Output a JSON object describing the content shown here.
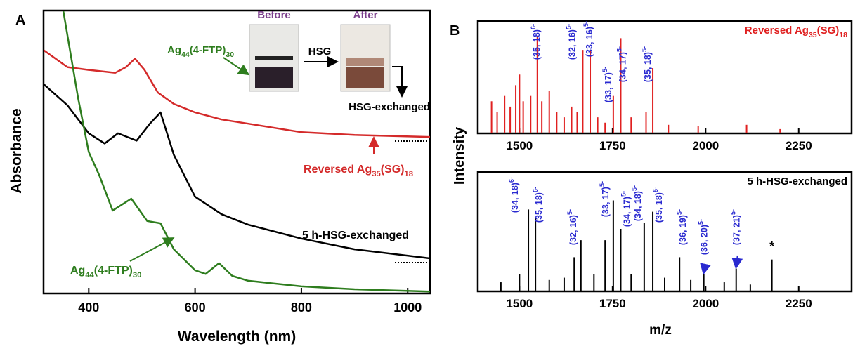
{
  "chart_data": [
    {
      "type": "line",
      "panel": "A",
      "xlabel": "Wavelength (nm)",
      "ylabel": "Absorbance",
      "xlim": [
        315,
        1042
      ],
      "ylim": [
        0,
        1
      ],
      "xticks": [
        400,
        600,
        800,
        1000
      ],
      "series": [
        {
          "name": [
            "Reversed Ag",
            "35",
            "(SG)",
            "18"
          ],
          "color": "#d42a2a",
          "x": [
            315,
            360,
            400,
            450,
            470,
            487,
            505,
            530,
            560,
            600,
            650,
            700,
            800,
            900,
            1042
          ],
          "values": [
            0.86,
            0.8,
            0.79,
            0.78,
            0.8,
            0.83,
            0.79,
            0.71,
            0.67,
            0.64,
            0.615,
            0.6,
            0.57,
            0.56,
            0.553
          ]
        },
        {
          "name": [
            "5 h-HSG-exchanged"
          ],
          "color": "#000000",
          "x": [
            315,
            360,
            400,
            430,
            455,
            490,
            515,
            535,
            560,
            600,
            650,
            700,
            800,
            900,
            1042
          ],
          "values": [
            0.74,
            0.665,
            0.566,
            0.53,
            0.566,
            0.54,
            0.6,
            0.64,
            0.49,
            0.342,
            0.28,
            0.243,
            0.194,
            0.156,
            0.124
          ]
        },
        {
          "name": [
            "Ag",
            "44",
            "(4-FTP)",
            "30"
          ],
          "color": "#2e7d1e",
          "x": [
            352,
            380,
            400,
            420,
            445,
            480,
            510,
            535,
            560,
            600,
            620,
            645,
            670,
            700,
            800,
            900,
            1042
          ],
          "values": [
            1.0,
            0.69,
            0.5,
            0.417,
            0.293,
            0.335,
            0.256,
            0.248,
            0.156,
            0.082,
            0.069,
            0.107,
            0.062,
            0.045,
            0.025,
            0.015,
            0.007
          ]
        }
      ],
      "inset": {
        "before": "Before",
        "after": "After",
        "reagent": "HSG",
        "product": "HSG-exchanged",
        "compound": [
          "Ag",
          "44",
          "(4-FTP)",
          "30"
        ]
      }
    },
    {
      "type": "stem",
      "panel": "B",
      "ylabel": "Intensity",
      "title": [
        "Reversed Ag",
        "35",
        "(SG)",
        "18"
      ],
      "color": "#e02020",
      "xlim": [
        1388,
        2392
      ],
      "ylim": [
        0,
        1.05
      ],
      "xticks": [
        1500,
        1750,
        2000,
        2250
      ],
      "x": [
        1425,
        1440,
        1460,
        1475,
        1490,
        1500,
        1510,
        1530,
        1548,
        1560,
        1580,
        1600,
        1620,
        1640,
        1655,
        1670,
        1690,
        1710,
        1730,
        1752,
        1772,
        1800,
        1840,
        1858,
        1900,
        1980,
        2110,
        2200
      ],
      "values": [
        0.3,
        0.2,
        0.35,
        0.25,
        0.45,
        0.55,
        0.3,
        0.35,
        0.9,
        0.3,
        0.4,
        0.2,
        0.15,
        0.25,
        0.2,
        0.78,
        0.78,
        0.15,
        0.1,
        0.35,
        0.89,
        0.15,
        0.2,
        0.61,
        0.08,
        0.07,
        0.08,
        0.04
      ],
      "peak_labels": [
        {
          "text": "(35, 18)",
          "sup": "6-",
          "x": 1548
        },
        {
          "text": "(32, 16)",
          "sup": "5-",
          "x": 1670
        },
        {
          "text": "(33, 16)",
          "sup": "5-",
          "x": 1690
        },
        {
          "text": "(33, 17)",
          "sup": "5-",
          "x": 1752
        },
        {
          "text": "(34, 17)",
          "sup": "5-",
          "x": 1772
        },
        {
          "text": "(35, 18)",
          "sup": "5-",
          "x": 1858
        }
      ]
    },
    {
      "type": "stem",
      "xlabel": "m/z",
      "title": [
        "5 h-HSG-exchanged"
      ],
      "color": "#000000",
      "xlim": [
        1388,
        2392
      ],
      "ylim": [
        0,
        1.05
      ],
      "xticks": [
        1500,
        1750,
        2000,
        2250
      ],
      "x": [
        1450,
        1500,
        1524,
        1543,
        1580,
        1620,
        1647,
        1665,
        1700,
        1730,
        1752,
        1772,
        1800,
        1835,
        1858,
        1890,
        1930,
        1960,
        1995,
        2050,
        2082,
        2120,
        2178
      ],
      "values": [
        0.08,
        0.15,
        0.72,
        0.65,
        0.1,
        0.12,
        0.3,
        0.45,
        0.15,
        0.45,
        0.8,
        0.55,
        0.15,
        0.6,
        0.7,
        0.12,
        0.3,
        0.1,
        0.15,
        0.08,
        0.2,
        0.06,
        0.28
      ],
      "peak_labels": [
        {
          "text": "(34, 18)",
          "sup": "6-",
          "x": 1524
        },
        {
          "text": "(35, 18)",
          "sup": "6-",
          "x": 1543
        },
        {
          "text": "(32, 16)",
          "sup": "5-",
          "x": 1665
        },
        {
          "text": "(33, 17)",
          "sup": "5-",
          "x": 1752
        },
        {
          "text": "(34, 17)",
          "sup": "5-",
          "x": 1772
        },
        {
          "text": "(34, 18)",
          "sup": "5-",
          "x": 1835
        },
        {
          "text": "(35, 18)",
          "sup": "5-",
          "x": 1858
        },
        {
          "text": "(36, 19)",
          "sup": "5-",
          "x": 1930
        },
        {
          "text": "(36, 20)",
          "sup": "5-",
          "x": 1995
        },
        {
          "text": "(37, 21)",
          "sup": "5-",
          "x": 2082
        }
      ],
      "marker": {
        "text": "*",
        "x": 2178
      }
    }
  ]
}
